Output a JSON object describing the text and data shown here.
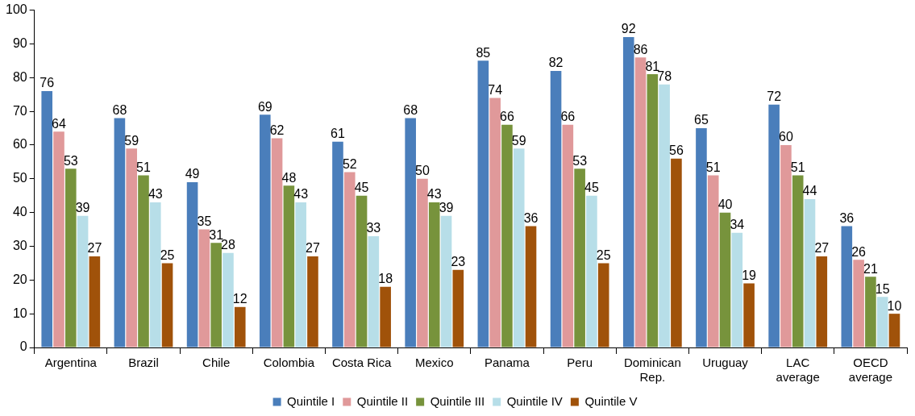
{
  "chart_data": {
    "type": "bar",
    "categories": [
      "Argentina",
      "Brazil",
      "Chile",
      "Colombia",
      "Costa Rica",
      "Mexico",
      "Panama",
      "Peru",
      "Dominican\nRep.",
      "Uruguay",
      "LAC\naverage",
      "OECD\naverage"
    ],
    "series": [
      {
        "name": "Quintile I",
        "color": "#4a7ebb",
        "values": [
          76,
          68,
          49,
          69,
          61,
          68,
          85,
          82,
          92,
          65,
          72,
          36
        ]
      },
      {
        "name": "Quintile II",
        "color": "#e0999a",
        "values": [
          64,
          59,
          35,
          62,
          52,
          50,
          74,
          66,
          86,
          51,
          60,
          26
        ]
      },
      {
        "name": "Quintile III",
        "color": "#77933c",
        "values": [
          53,
          51,
          31,
          48,
          45,
          43,
          66,
          53,
          81,
          40,
          51,
          21
        ]
      },
      {
        "name": "Quintile IV",
        "color": "#b7dee8",
        "values": [
          39,
          43,
          28,
          43,
          33,
          39,
          59,
          45,
          78,
          34,
          44,
          15
        ]
      },
      {
        "name": "Quintile V",
        "color": "#a0520a",
        "values": [
          27,
          25,
          12,
          27,
          18,
          23,
          36,
          25,
          56,
          19,
          27,
          10
        ]
      }
    ],
    "ylim": [
      0,
      100
    ],
    "yticks": [
      0,
      10,
      20,
      30,
      40,
      50,
      60,
      70,
      80,
      90,
      100
    ],
    "grid": false,
    "legend": "bottom",
    "data_labels": true
  }
}
